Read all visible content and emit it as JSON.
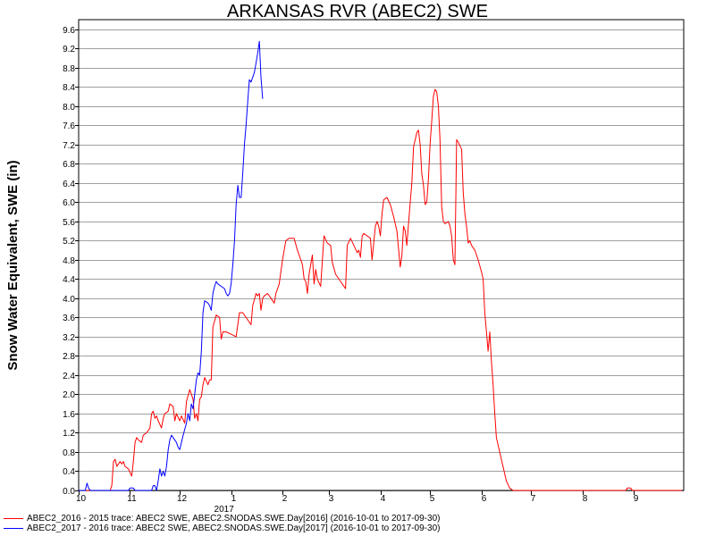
{
  "chart_data": {
    "type": "line",
    "title": "ARKANSAS RVR (ABEC2) SWE",
    "ylabel": "Snow Water Equivalent, SWE (in)",
    "xlabel": "",
    "ylim": [
      0,
      9.8
    ],
    "yticks": [
      "0.0",
      "0.4",
      "0.8",
      "1.2",
      "1.6",
      "2.0",
      "2.4",
      "2.8",
      "3.2",
      "3.6",
      "4.0",
      "4.4",
      "4.8",
      "5.2",
      "5.6",
      "6.0",
      "6.4",
      "6.8",
      "7.2",
      "7.6",
      "8.0",
      "8.4",
      "8.8",
      "9.2",
      "9.6"
    ],
    "x_domain": [
      "2016-10-01",
      "2017-09-30"
    ],
    "xticks": [
      {
        "date": "2016-10-01",
        "label": "10"
      },
      {
        "date": "2016-11-01",
        "label": "11"
      },
      {
        "date": "2016-12-01",
        "label": "12"
      },
      {
        "date": "2017-01-01",
        "label": "1"
      },
      {
        "date": "2017-02-01",
        "label": "2"
      },
      {
        "date": "2017-03-01",
        "label": "3"
      },
      {
        "date": "2017-04-01",
        "label": "4"
      },
      {
        "date": "2017-05-01",
        "label": "5"
      },
      {
        "date": "2017-06-01",
        "label": "6"
      },
      {
        "date": "2017-07-01",
        "label": "7"
      },
      {
        "date": "2017-08-01",
        "label": "8"
      },
      {
        "date": "2017-09-01",
        "label": "9"
      }
    ],
    "year_label": {
      "date": "2017-01-01",
      "label": "2017"
    },
    "grid": true,
    "legend_position": "bottom-left",
    "series": [
      {
        "name": "ABEC2_2016 - 2015 trace: ABEC2 SWE, ABEC2.SNODAS.SWE.Day[2016] (2016-10-01 to 2017-09-30)",
        "color": "#ff0000",
        "points": [
          [
            "2016-10-01",
            0
          ],
          [
            "2016-10-20",
            0
          ],
          [
            "2016-10-21",
            0.1
          ],
          [
            "2016-10-22",
            0.6
          ],
          [
            "2016-10-23",
            0.65
          ],
          [
            "2016-10-24",
            0.5
          ],
          [
            "2016-10-26",
            0.6
          ],
          [
            "2016-10-27",
            0.55
          ],
          [
            "2016-10-28",
            0.6
          ],
          [
            "2016-10-29",
            0.5
          ],
          [
            "2016-10-31",
            0.45
          ],
          [
            "2016-11-02",
            0.3
          ],
          [
            "2016-11-03",
            0.6
          ],
          [
            "2016-11-04",
            1.0
          ],
          [
            "2016-11-05",
            1.1
          ],
          [
            "2016-11-06",
            1.05
          ],
          [
            "2016-11-08",
            1.0
          ],
          [
            "2016-11-09",
            1.15
          ],
          [
            "2016-11-11",
            1.2
          ],
          [
            "2016-11-13",
            1.3
          ],
          [
            "2016-11-14",
            1.6
          ],
          [
            "2016-11-15",
            1.65
          ],
          [
            "2016-11-16",
            1.5
          ],
          [
            "2016-11-17",
            1.55
          ],
          [
            "2016-11-18",
            1.45
          ],
          [
            "2016-11-20",
            1.3
          ],
          [
            "2016-11-21",
            1.5
          ],
          [
            "2016-11-22",
            1.6
          ],
          [
            "2016-11-24",
            1.65
          ],
          [
            "2016-11-25",
            1.8
          ],
          [
            "2016-11-27",
            1.75
          ],
          [
            "2016-11-28",
            1.45
          ],
          [
            "2016-11-29",
            1.6
          ],
          [
            "2016-12-01",
            1.45
          ],
          [
            "2016-12-02",
            1.55
          ],
          [
            "2016-12-04",
            1.4
          ],
          [
            "2016-12-05",
            1.85
          ],
          [
            "2016-12-07",
            2.1
          ],
          [
            "2016-12-09",
            1.9
          ],
          [
            "2016-12-10",
            1.5
          ],
          [
            "2016-12-11",
            1.6
          ],
          [
            "2016-12-12",
            1.45
          ],
          [
            "2016-12-13",
            1.9
          ],
          [
            "2016-12-14",
            1.95
          ],
          [
            "2016-12-15",
            2.2
          ],
          [
            "2016-12-16",
            2.35
          ],
          [
            "2016-12-18",
            2.2
          ],
          [
            "2016-12-19",
            2.3
          ],
          [
            "2016-12-20",
            2.3
          ],
          [
            "2016-12-21",
            3.4
          ],
          [
            "2016-12-23",
            3.65
          ],
          [
            "2016-12-25",
            3.6
          ],
          [
            "2016-12-26",
            3.15
          ],
          [
            "2016-12-27",
            3.3
          ],
          [
            "2016-12-29",
            3.3
          ],
          [
            "2017-01-01",
            3.25
          ],
          [
            "2017-01-04",
            3.2
          ],
          [
            "2017-01-06",
            3.7
          ],
          [
            "2017-01-08",
            3.7
          ],
          [
            "2017-01-10",
            3.6
          ],
          [
            "2017-01-13",
            3.45
          ],
          [
            "2017-01-14",
            3.85
          ],
          [
            "2017-01-16",
            4.1
          ],
          [
            "2017-01-17",
            4.05
          ],
          [
            "2017-01-18",
            4.1
          ],
          [
            "2017-01-19",
            3.75
          ],
          [
            "2017-01-20",
            4.0
          ],
          [
            "2017-01-21",
            4.05
          ],
          [
            "2017-01-23",
            4.1
          ],
          [
            "2017-01-25",
            4.0
          ],
          [
            "2017-01-27",
            3.9
          ],
          [
            "2017-01-28",
            4.1
          ],
          [
            "2017-01-30",
            4.3
          ],
          [
            "2017-02-01",
            4.8
          ],
          [
            "2017-02-03",
            5.2
          ],
          [
            "2017-02-05",
            5.25
          ],
          [
            "2017-02-08",
            5.25
          ],
          [
            "2017-02-10",
            5.0
          ],
          [
            "2017-02-11",
            4.9
          ],
          [
            "2017-02-13",
            4.7
          ],
          [
            "2017-02-14",
            4.4
          ],
          [
            "2017-02-15",
            4.35
          ],
          [
            "2017-02-16",
            4.1
          ],
          [
            "2017-02-17",
            4.5
          ],
          [
            "2017-02-19",
            4.9
          ],
          [
            "2017-02-20",
            4.3
          ],
          [
            "2017-02-21",
            4.6
          ],
          [
            "2017-02-22",
            4.4
          ],
          [
            "2017-02-24",
            4.25
          ],
          [
            "2017-02-26",
            5.3
          ],
          [
            "2017-02-28",
            5.15
          ],
          [
            "2017-03-02",
            5.1
          ],
          [
            "2017-03-03",
            4.75
          ],
          [
            "2017-03-05",
            4.5
          ],
          [
            "2017-03-07",
            4.4
          ],
          [
            "2017-03-09",
            4.3
          ],
          [
            "2017-03-10",
            4.25
          ],
          [
            "2017-03-11",
            4.2
          ],
          [
            "2017-03-12",
            5.1
          ],
          [
            "2017-03-14",
            5.25
          ],
          [
            "2017-03-16",
            5.1
          ],
          [
            "2017-03-18",
            4.95
          ],
          [
            "2017-03-19",
            5.0
          ],
          [
            "2017-03-20",
            4.85
          ],
          [
            "2017-03-21",
            5.3
          ],
          [
            "2017-03-22",
            5.35
          ],
          [
            "2017-03-24",
            5.3
          ],
          [
            "2017-03-26",
            5.25
          ],
          [
            "2017-03-27",
            4.8
          ],
          [
            "2017-03-29",
            5.5
          ],
          [
            "2017-03-30",
            5.6
          ],
          [
            "2017-03-31",
            5.5
          ],
          [
            "2017-04-01",
            5.3
          ],
          [
            "2017-04-02",
            5.75
          ],
          [
            "2017-04-03",
            6.05
          ],
          [
            "2017-04-05",
            6.1
          ],
          [
            "2017-04-07",
            5.95
          ],
          [
            "2017-04-09",
            5.7
          ],
          [
            "2017-04-11",
            5.4
          ],
          [
            "2017-04-13",
            4.65
          ],
          [
            "2017-04-14",
            4.9
          ],
          [
            "2017-04-15",
            5.5
          ],
          [
            "2017-04-16",
            5.4
          ],
          [
            "2017-04-17",
            5.1
          ],
          [
            "2017-04-19",
            6.0
          ],
          [
            "2017-04-20",
            6.4
          ],
          [
            "2017-04-21",
            7.15
          ],
          [
            "2017-04-23",
            7.45
          ],
          [
            "2017-04-24",
            7.5
          ],
          [
            "2017-04-25",
            7.2
          ],
          [
            "2017-04-26",
            6.6
          ],
          [
            "2017-04-27",
            6.35
          ],
          [
            "2017-04-28",
            5.95
          ],
          [
            "2017-04-29",
            6.0
          ],
          [
            "2017-04-30",
            6.5
          ],
          [
            "2017-05-01",
            7.2
          ],
          [
            "2017-05-02",
            7.7
          ],
          [
            "2017-05-03",
            8.2
          ],
          [
            "2017-05-04",
            8.35
          ],
          [
            "2017-05-05",
            8.3
          ],
          [
            "2017-05-06",
            8.0
          ],
          [
            "2017-05-07",
            7.3
          ],
          [
            "2017-05-08",
            5.9
          ],
          [
            "2017-05-09",
            5.6
          ],
          [
            "2017-05-10",
            5.55
          ],
          [
            "2017-05-12",
            5.6
          ],
          [
            "2017-05-13",
            5.5
          ],
          [
            "2017-05-14",
            5.3
          ],
          [
            "2017-05-15",
            4.8
          ],
          [
            "2017-05-16",
            4.7
          ],
          [
            "2017-05-17",
            7.3
          ],
          [
            "2017-05-18",
            7.25
          ],
          [
            "2017-05-20",
            7.1
          ],
          [
            "2017-05-21",
            6.2
          ],
          [
            "2017-05-22",
            5.75
          ],
          [
            "2017-05-23",
            5.5
          ],
          [
            "2017-05-24",
            5.15
          ],
          [
            "2017-05-25",
            5.2
          ],
          [
            "2017-05-26",
            5.1
          ],
          [
            "2017-05-28",
            5.0
          ],
          [
            "2017-05-30",
            4.8
          ],
          [
            "2017-06-01",
            4.55
          ],
          [
            "2017-06-02",
            4.4
          ],
          [
            "2017-06-03",
            3.7
          ],
          [
            "2017-06-04",
            3.3
          ],
          [
            "2017-06-05",
            2.9
          ],
          [
            "2017-06-06",
            3.3
          ],
          [
            "2017-06-07",
            2.7
          ],
          [
            "2017-06-08",
            2.2
          ],
          [
            "2017-06-09",
            1.6
          ],
          [
            "2017-06-10",
            1.1
          ],
          [
            "2017-06-12",
            0.8
          ],
          [
            "2017-06-14",
            0.5
          ],
          [
            "2017-06-16",
            0.2
          ],
          [
            "2017-06-18",
            0.05
          ],
          [
            "2017-06-20",
            0
          ],
          [
            "2017-08-27",
            0
          ],
          [
            "2017-08-28",
            0.05
          ],
          [
            "2017-08-30",
            0.05
          ],
          [
            "2017-08-31",
            0
          ],
          [
            "2017-09-30",
            0
          ]
        ]
      },
      {
        "name": "ABEC2_2017 - 2016 trace: ABEC2 SWE, ABEC2.SNODAS.SWE.Day[2017] (2016-10-01 to 2017-09-30)",
        "color": "#0000ff",
        "points": [
          [
            "2016-10-01",
            0
          ],
          [
            "2016-10-05",
            0
          ],
          [
            "2016-10-06",
            0.15
          ],
          [
            "2016-10-07",
            0.05
          ],
          [
            "2016-10-08",
            0
          ],
          [
            "2016-10-31",
            0
          ],
          [
            "2016-11-01",
            0.05
          ],
          [
            "2016-11-03",
            0.05
          ],
          [
            "2016-11-04",
            0
          ],
          [
            "2016-11-14",
            0
          ],
          [
            "2016-11-15",
            0.1
          ],
          [
            "2016-11-16",
            0.1
          ],
          [
            "2016-11-17",
            0
          ],
          [
            "2016-11-18",
            0.2
          ],
          [
            "2016-11-19",
            0.45
          ],
          [
            "2016-11-20",
            0.3
          ],
          [
            "2016-11-21",
            0.4
          ],
          [
            "2016-11-22",
            0.3
          ],
          [
            "2016-11-23",
            0.5
          ],
          [
            "2016-11-24",
            0.85
          ],
          [
            "2016-11-25",
            1.05
          ],
          [
            "2016-11-26",
            1.15
          ],
          [
            "2016-11-27",
            1.1
          ],
          [
            "2016-11-29",
            1.0
          ],
          [
            "2016-11-30",
            0.9
          ],
          [
            "2016-12-01",
            0.85
          ],
          [
            "2016-12-02",
            1.0
          ],
          [
            "2016-12-03",
            1.15
          ],
          [
            "2016-12-05",
            1.4
          ],
          [
            "2016-12-06",
            1.6
          ],
          [
            "2016-12-07",
            1.45
          ],
          [
            "2016-12-08",
            1.8
          ],
          [
            "2016-12-09",
            1.7
          ],
          [
            "2016-12-10",
            2.0
          ],
          [
            "2016-12-11",
            2.3
          ],
          [
            "2016-12-12",
            2.45
          ],
          [
            "2016-12-13",
            2.4
          ],
          [
            "2016-12-14",
            2.9
          ],
          [
            "2016-12-15",
            3.7
          ],
          [
            "2016-12-16",
            3.95
          ],
          [
            "2016-12-18",
            3.9
          ],
          [
            "2016-12-19",
            3.85
          ],
          [
            "2016-12-20",
            3.75
          ],
          [
            "2016-12-21",
            4.1
          ],
          [
            "2016-12-22",
            4.25
          ],
          [
            "2016-12-23",
            4.35
          ],
          [
            "2016-12-24",
            4.3
          ],
          [
            "2016-12-26",
            4.25
          ],
          [
            "2016-12-28",
            4.2
          ],
          [
            "2016-12-29",
            4.1
          ],
          [
            "2016-12-30",
            4.05
          ],
          [
            "2016-12-31",
            4.1
          ],
          [
            "2017-01-01",
            4.3
          ],
          [
            "2017-01-02",
            4.7
          ],
          [
            "2017-01-03",
            5.2
          ],
          [
            "2017-01-04",
            5.95
          ],
          [
            "2017-01-05",
            6.35
          ],
          [
            "2017-01-06",
            6.1
          ],
          [
            "2017-01-07",
            6.1
          ],
          [
            "2017-01-08",
            6.6
          ],
          [
            "2017-01-09",
            7.2
          ],
          [
            "2017-01-10",
            7.6
          ],
          [
            "2017-01-11",
            8.1
          ],
          [
            "2017-01-12",
            8.55
          ],
          [
            "2017-01-13",
            8.5
          ],
          [
            "2017-01-15",
            8.7
          ],
          [
            "2017-01-16",
            8.9
          ],
          [
            "2017-01-17",
            9.1
          ],
          [
            "2017-01-18",
            9.35
          ],
          [
            "2017-01-19",
            8.6
          ],
          [
            "2017-01-20",
            8.15
          ]
        ]
      }
    ]
  }
}
